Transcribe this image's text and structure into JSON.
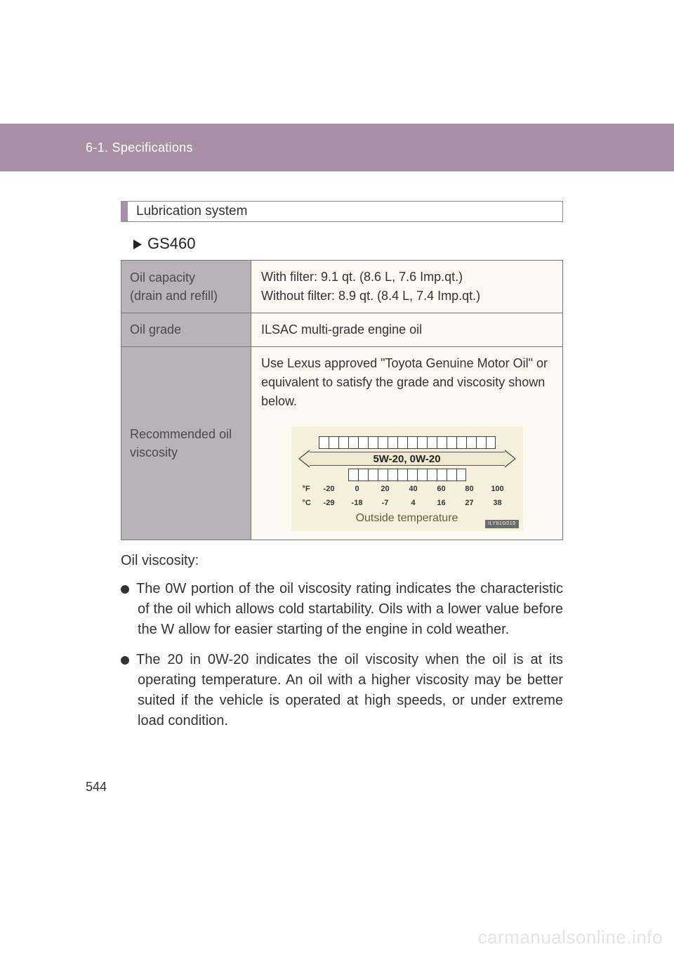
{
  "header": {
    "breadcrumb": "6-1. Specifications"
  },
  "section": {
    "title": "Lubrication system",
    "model": "GS460"
  },
  "table": {
    "rows": [
      {
        "k1": "Oil capacity",
        "k2": "(drain and refill)",
        "v1": "With filter: 9.1 qt. (8.6 L, 7.6 Imp.qt.)",
        "v2": "Without filter: 8.9 qt. (8.4 L, 7.4 Imp.qt.)"
      },
      {
        "k1": "Oil grade",
        "v1": "ILSAC multi-grade engine oil"
      },
      {
        "k1": "Recommended oil",
        "k2": "viscosity",
        "intro": "Use Lexus approved \"Toyota Genuine Motor Oil\" or equivalent to satisfy the grade and viscosity shown below.",
        "arrow_label": "5W-20, 0W-20",
        "caption": "Outside temperature",
        "fig_tag": "ILY61G019",
        "ticks_top": 18,
        "ticks_bottom": 12,
        "f_unit": "°F",
        "f": [
          "-20",
          "0",
          "20",
          "40",
          "60",
          "80",
          "100"
        ],
        "c_unit": "°C",
        "c": [
          "-29",
          "-18",
          "-7",
          "4",
          "16",
          "27",
          "38"
        ]
      }
    ]
  },
  "body": {
    "intro": "Oil viscosity:",
    "bullets": [
      "The 0W portion of the oil viscosity rating indicates the characteristic of the oil which allows cold startability. Oils with a lower value before the W allow for easier starting of the engine in cold weather.",
      "The 20 in 0W-20 indicates the oil viscosity when the oil is at its operating temperature. An oil with a higher viscosity may be better suited if the vehicle is operated at high speeds, or under extreme load condition."
    ]
  },
  "page_number": "544",
  "watermark": "carmanualsonline.info",
  "colors": {
    "band": "#a88fa6",
    "key_bg": "#b9b2b8",
    "val_bg": "#fcfaf0",
    "fig_bg": "#f5f1dd",
    "wm": "#e4e4e4"
  }
}
